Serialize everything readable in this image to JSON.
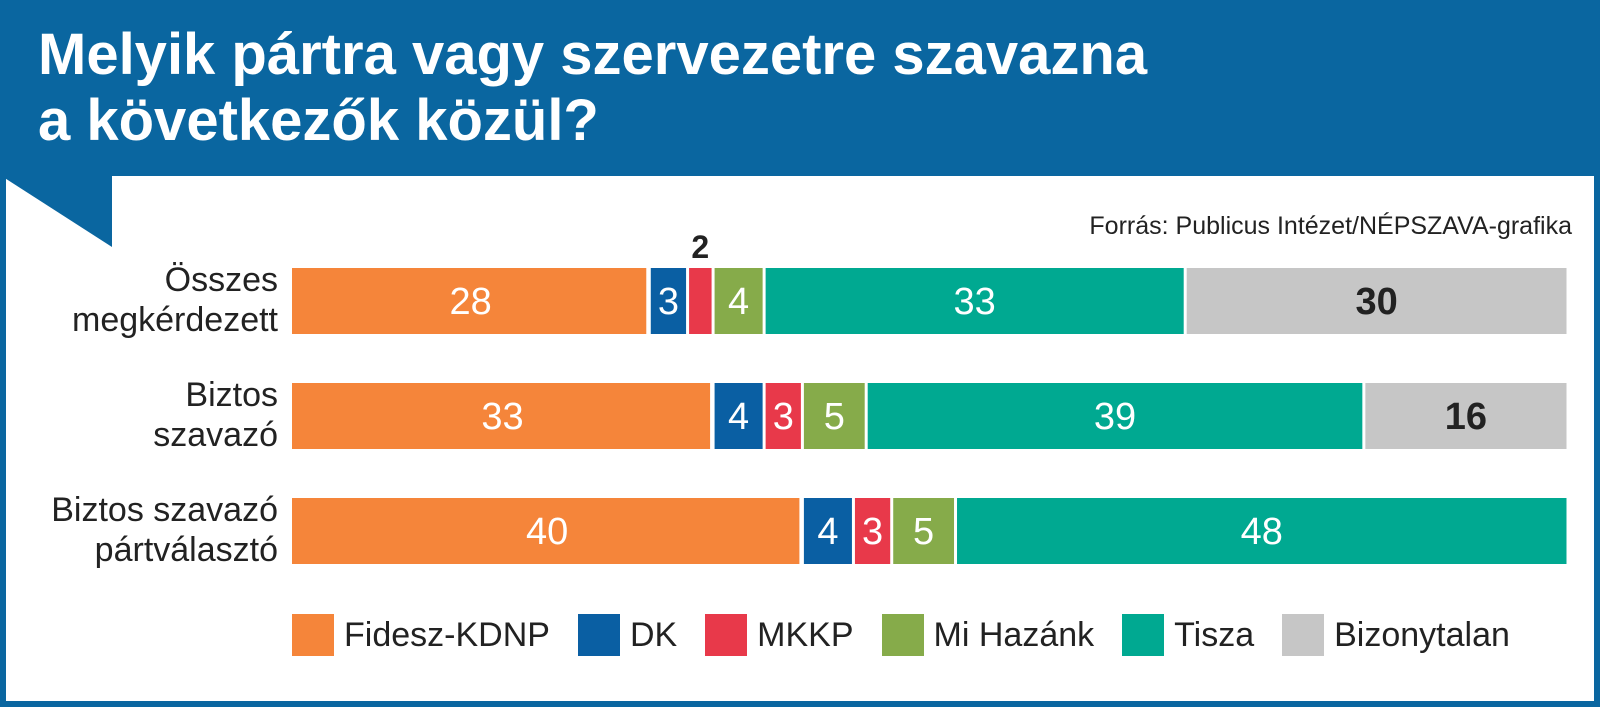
{
  "title": {
    "line1": "Melyik pártra vagy szervezetre szavazna",
    "line2": "a következők közül?"
  },
  "source": "Forrás: Publicus Intézet/NÉPSZAVA-grafika",
  "colors": {
    "header": "#0a66a0",
    "Fidesz-KDNP": "#f5853a",
    "DK": "#0a5fa3",
    "MKKP": "#e8394a",
    "Mi Hazánk": "#86ab4a",
    "Tisza": "#00a991",
    "Bizonytalan": "#c6c6c6"
  },
  "chart_data": {
    "type": "bar",
    "orientation": "horizontal",
    "stacked": true,
    "legend_position": "bottom",
    "categories": [
      "Összes megkérdezett",
      "Biztos szavazó",
      "Biztos szavazó pártválasztó"
    ],
    "category_lines": [
      [
        "Összes",
        "megkérdezett"
      ],
      [
        "Biztos",
        "szavazó"
      ],
      [
        "Biztos szavazó",
        "pártválasztó"
      ]
    ],
    "series": [
      {
        "name": "Fidesz-KDNP",
        "values": [
          28,
          33,
          40
        ]
      },
      {
        "name": "DK",
        "values": [
          3,
          4,
          4
        ]
      },
      {
        "name": "MKKP",
        "values": [
          2,
          3,
          3
        ]
      },
      {
        "name": "Mi Hazánk",
        "values": [
          4,
          5,
          5
        ]
      },
      {
        "name": "Tisza",
        "values": [
          33,
          39,
          48
        ]
      },
      {
        "name": "Bizonytalan",
        "values": [
          30,
          16,
          0
        ]
      }
    ]
  }
}
